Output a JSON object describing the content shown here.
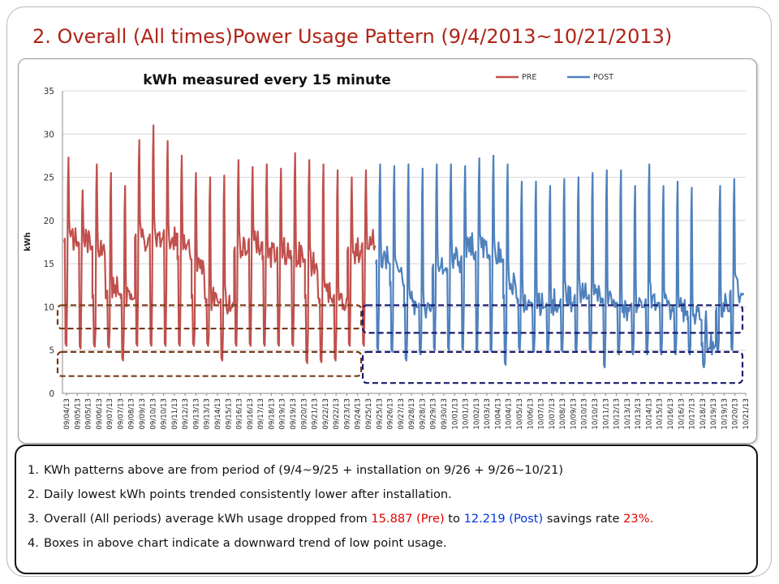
{
  "slide": {
    "title": "2. Overall (All times)Power Usage Pattern (9/4/2013~10/21/2013)"
  },
  "notes": [
    {
      "number": "1.",
      "text": "KWh patterns above are from period of (9/4~9/25 + installation on 9/26 + 9/26~10/21)"
    },
    {
      "number": "2.",
      "text": "Daily lowest kWh points trended consistently lower after installation."
    },
    {
      "number": "3.",
      "prefix": "Overall (All periods) average kWh usage dropped from ",
      "pre_value": "15.887 (Pre)",
      "middle": " to ",
      "post_value": "12.219 (Post)",
      "suffix": " savings rate ",
      "rate": "23%."
    },
    {
      "number": "4.",
      "text": "Boxes in above chart indicate a downward trend of low point usage."
    }
  ],
  "colors": {
    "pre": "#c0504d",
    "post": "#4f81bd",
    "title": "#b02418",
    "pre_box": "#7b3a15",
    "post_box": "#1a1a6e",
    "highlight_red": "#e00000",
    "highlight_blue": "#0033dd"
  },
  "chart_data": {
    "type": "line",
    "title": "kWh measured every 15 minute",
    "xlabel": "",
    "ylabel": "kWh",
    "ylim": [
      0,
      35
    ],
    "y_ticks": [
      0,
      5,
      10,
      15,
      20,
      25,
      30,
      35
    ],
    "grid": true,
    "legend": "top-right",
    "tick_labels": [
      "09/04/13",
      "09/05/13",
      "09/05/13",
      "09/06/13",
      "09/07/13",
      "09/07/13",
      "09/08/13",
      "09/09/13",
      "09/10/13",
      "09/10/13",
      "09/11/13",
      "09/12/13",
      "09/13/13",
      "09/13/13",
      "09/14/13",
      "09/15/13",
      "09/16/13",
      "09/16/13",
      "09/17/13",
      "09/18/13",
      "09/19/13",
      "09/19/13",
      "09/20/13",
      "09/21/13",
      "09/22/13",
      "09/22/13",
      "09/23/13",
      "09/24/13",
      "09/25/13",
      "09/25/13",
      "09/26/13",
      "09/27/13",
      "09/28/13",
      "09/28/13",
      "09/29/13",
      "09/30/13",
      "10/01/13",
      "10/01/13",
      "10/02/13",
      "10/03/13",
      "10/04/13",
      "10/04/13",
      "10/05/13",
      "10/06/13",
      "10/07/13",
      "10/07/13",
      "10/08/13",
      "10/09/13",
      "10/10/13",
      "10/10/13",
      "10/11/13",
      "10/12/13",
      "10/13/13",
      "10/13/13",
      "10/14/13",
      "10/15/13",
      "10/16/13",
      "10/16/13",
      "10/17/13",
      "10/18/13",
      "10/19/13",
      "10/19/13",
      "10/20/13",
      "10/21/13"
    ],
    "series": [
      {
        "name": "PRE",
        "color": "#c0504d",
        "daily": [
          {
            "date": "09/04/13",
            "base": 17.5,
            "peak": 27.3,
            "low": 5.5,
            "plateau": 18.0
          },
          {
            "date": "09/05/13",
            "base": 17.0,
            "peak": 23.5,
            "low": 5.2,
            "plateau": 17.5
          },
          {
            "date": "09/06/13",
            "base": 11.0,
            "peak": 26.5,
            "low": 5.4,
            "plateau": 17.0
          },
          {
            "date": "09/07/13",
            "base": 11.5,
            "peak": 25.5,
            "low": 5.3,
            "plateau": 12.0
          },
          {
            "date": "09/08/13",
            "base": 11.0,
            "peak": 24.0,
            "low": 3.8,
            "plateau": 11.5
          },
          {
            "date": "09/09/13",
            "base": 18.0,
            "peak": 29.3,
            "low": 5.5,
            "plateau": 18.0
          },
          {
            "date": "09/10/13",
            "base": 18.0,
            "peak": 31.0,
            "low": 5.5,
            "plateau": 18.5
          },
          {
            "date": "09/11/13",
            "base": 18.5,
            "peak": 29.2,
            "low": 5.5,
            "plateau": 18.0
          },
          {
            "date": "09/12/13",
            "base": 15.5,
            "peak": 27.5,
            "low": 5.5,
            "plateau": 17.0
          },
          {
            "date": "09/13/13",
            "base": 11.0,
            "peak": 25.5,
            "low": 5.5,
            "plateau": 15.0
          },
          {
            "date": "09/14/13",
            "base": 10.5,
            "peak": 25.0,
            "low": 5.5,
            "plateau": 11.0
          },
          {
            "date": "09/15/13",
            "base": 10.5,
            "peak": 25.2,
            "low": 3.8,
            "plateau": 10.5
          },
          {
            "date": "09/16/13",
            "base": 16.5,
            "peak": 27.0,
            "low": 5.5,
            "plateau": 17.0
          },
          {
            "date": "09/17/13",
            "base": 17.5,
            "peak": 26.2,
            "low": 5.5,
            "plateau": 17.5
          },
          {
            "date": "09/18/13",
            "base": 15.5,
            "peak": 26.5,
            "low": 5.5,
            "plateau": 16.0
          },
          {
            "date": "09/19/13",
            "base": 16.5,
            "peak": 26.0,
            "low": 5.5,
            "plateau": 16.5
          },
          {
            "date": "09/20/13",
            "base": 15.5,
            "peak": 27.8,
            "low": 5.5,
            "plateau": 16.0
          },
          {
            "date": "09/21/13",
            "base": 11.0,
            "peak": 27.0,
            "low": 3.5,
            "plateau": 15.0
          },
          {
            "date": "09/22/13",
            "base": 10.5,
            "peak": 26.5,
            "low": 3.6,
            "plateau": 11.5
          },
          {
            "date": "09/23/13",
            "base": 11.0,
            "peak": 25.8,
            "low": 3.8,
            "plateau": 10.5
          },
          {
            "date": "09/24/13",
            "base": 16.5,
            "peak": 25.0,
            "low": 5.5,
            "plateau": 16.5
          },
          {
            "date": "09/25/13",
            "base": 17.0,
            "peak": 25.8,
            "low": 5.5,
            "plateau": 17.5
          }
        ]
      },
      {
        "name": "POST",
        "color": "#4f81bd",
        "daily": [
          {
            "date": "09/26/13",
            "base": 15.0,
            "peak": 26.5,
            "low": 5.0,
            "plateau": 16.0
          },
          {
            "date": "09/27/13",
            "base": 12.5,
            "peak": 26.3,
            "low": 4.8,
            "plateau": 14.0
          },
          {
            "date": "09/28/13",
            "base": 10.0,
            "peak": 26.5,
            "low": 3.8,
            "plateau": 10.5
          },
          {
            "date": "09/29/13",
            "base": 10.0,
            "peak": 26.0,
            "low": 4.5,
            "plateau": 10.0
          },
          {
            "date": "09/30/13",
            "base": 14.5,
            "peak": 26.5,
            "low": 5.0,
            "plateau": 15.0
          },
          {
            "date": "10/01/13",
            "base": 14.0,
            "peak": 26.5,
            "low": 5.0,
            "plateau": 16.0
          },
          {
            "date": "10/02/13",
            "base": 15.5,
            "peak": 26.3,
            "low": 5.0,
            "plateau": 17.0
          },
          {
            "date": "10/03/13",
            "base": 16.0,
            "peak": 27.2,
            "low": 4.8,
            "plateau": 16.5
          },
          {
            "date": "10/04/13",
            "base": 15.5,
            "peak": 27.5,
            "low": 4.8,
            "plateau": 16.0
          },
          {
            "date": "10/05/13",
            "base": 11.0,
            "peak": 26.5,
            "low": 3.3,
            "plateau": 13.0
          },
          {
            "date": "10/06/13",
            "base": 10.5,
            "peak": 24.5,
            "low": 5.0,
            "plateau": 11.0
          },
          {
            "date": "10/07/13",
            "base": 10.0,
            "peak": 24.5,
            "low": 4.8,
            "plateau": 10.5
          },
          {
            "date": "10/08/13",
            "base": 10.0,
            "peak": 24.0,
            "low": 4.8,
            "plateau": 10.5
          },
          {
            "date": "10/09/13",
            "base": 10.5,
            "peak": 24.8,
            "low": 4.8,
            "plateau": 11.0
          },
          {
            "date": "10/10/13",
            "base": 11.0,
            "peak": 25.0,
            "low": 4.8,
            "plateau": 11.5
          },
          {
            "date": "10/11/13",
            "base": 11.0,
            "peak": 25.5,
            "low": 4.8,
            "plateau": 11.0
          },
          {
            "date": "10/12/13",
            "base": 10.5,
            "peak": 25.8,
            "low": 3.0,
            "plateau": 10.5
          },
          {
            "date": "10/13/13",
            "base": 10.0,
            "peak": 25.8,
            "low": 4.5,
            "plateau": 10.0
          },
          {
            "date": "10/14/13",
            "base": 10.0,
            "peak": 24.0,
            "low": 4.5,
            "plateau": 10.5
          },
          {
            "date": "10/15/13",
            "base": 10.5,
            "peak": 26.5,
            "low": 4.5,
            "plateau": 11.0
          },
          {
            "date": "10/16/13",
            "base": 10.0,
            "peak": 24.0,
            "low": 4.5,
            "plateau": 10.0
          },
          {
            "date": "10/17/13",
            "base": 9.5,
            "peak": 24.5,
            "low": 4.5,
            "plateau": 9.5
          },
          {
            "date": "10/18/13",
            "base": 8.5,
            "peak": 23.8,
            "low": 4.5,
            "plateau": 9.0
          },
          {
            "date": "10/19/13",
            "base": 5.5,
            "peak": 9.5,
            "low": 3.0,
            "plateau": 5.5
          },
          {
            "date": "10/20/13",
            "base": 9.5,
            "peak": 24.0,
            "low": 4.8,
            "plateau": 10.0
          },
          {
            "date": "10/21/13",
            "base": 11.5,
            "peak": 24.8,
            "low": 5.0,
            "plateau": 12.0
          }
        ]
      }
    ],
    "annotations": [
      {
        "type": "dashed-box",
        "series": "PRE",
        "y_range": [
          7.5,
          10.2
        ],
        "date_range": [
          "09/04/13",
          "09/25/13"
        ]
      },
      {
        "type": "dashed-box",
        "series": "PRE",
        "y_range": [
          2.0,
          4.8
        ],
        "date_range": [
          "09/04/13",
          "09/25/13"
        ]
      },
      {
        "type": "dashed-box",
        "series": "POST",
        "y_range": [
          7.0,
          10.2
        ],
        "date_range": [
          "09/26/13",
          "10/21/13"
        ]
      },
      {
        "type": "dashed-box",
        "series": "POST",
        "y_range": [
          1.2,
          4.8
        ],
        "date_range": [
          "09/26/13",
          "10/21/13"
        ]
      }
    ]
  }
}
